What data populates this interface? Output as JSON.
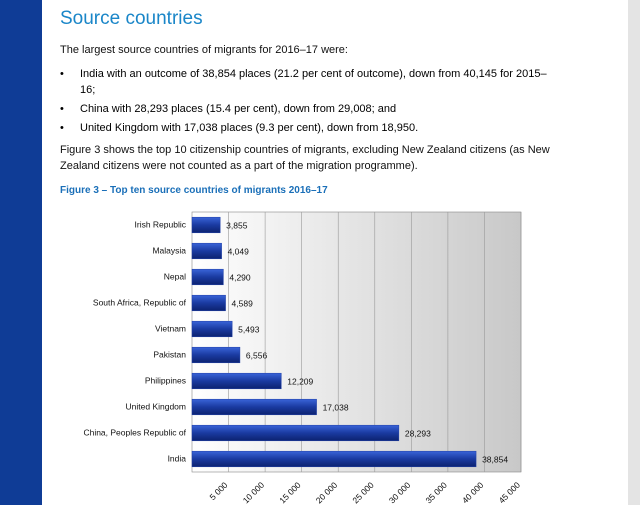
{
  "heading": "Source countries",
  "intro": "The largest source countries of migrants for 2016–17 were:",
  "bullets": [
    "India with an outcome of 38,854 places (21.2 per cent of outcome), down from 40,145 for 2015–16;",
    "China with 28,293 places (15.4 per cent), down from 29,008; and",
    "United Kingdom with 17,038 places (9.3 per cent), down from 18,950."
  ],
  "paragraph": "Figure 3 shows the top 10 citizenship countries of migrants, excluding New Zealand citizens (as New Zealand citizens were not counted as a part of the migration programme).",
  "chart_data": {
    "type": "barh",
    "title": "Figure 3 – Top ten source countries of migrants 2016–17",
    "categories": [
      "Irish Republic",
      "Malaysia",
      "Nepal",
      "South Africa, Republic of",
      "Vietnam",
      "Pakistan",
      "Philippines",
      "United Kingdom",
      "China, Peoples Republic of",
      "India"
    ],
    "values": [
      3855,
      4049,
      4290,
      4589,
      5493,
      6556,
      12209,
      17038,
      28293,
      38854
    ],
    "value_labels": [
      "3,855",
      "4,049",
      "4,290",
      "4,589",
      "5,493",
      "6,556",
      "12,209",
      "17,038",
      "28,293",
      "38,854"
    ],
    "color": "#1f3fa8",
    "xlim": [
      0,
      45000
    ],
    "xticks": [
      {
        "value": 5000,
        "label": "5 000"
      },
      {
        "value": 10000,
        "label": "10 000"
      },
      {
        "value": 15000,
        "label": "15 000"
      },
      {
        "value": 20000,
        "label": "20 000"
      },
      {
        "value": 25000,
        "label": "25 000"
      },
      {
        "value": 30000,
        "label": "30 000"
      },
      {
        "value": 35000,
        "label": "35 000"
      },
      {
        "value": 40000,
        "label": "40 000"
      },
      {
        "value": 45000,
        "label": "45 000"
      }
    ],
    "grid": true
  }
}
